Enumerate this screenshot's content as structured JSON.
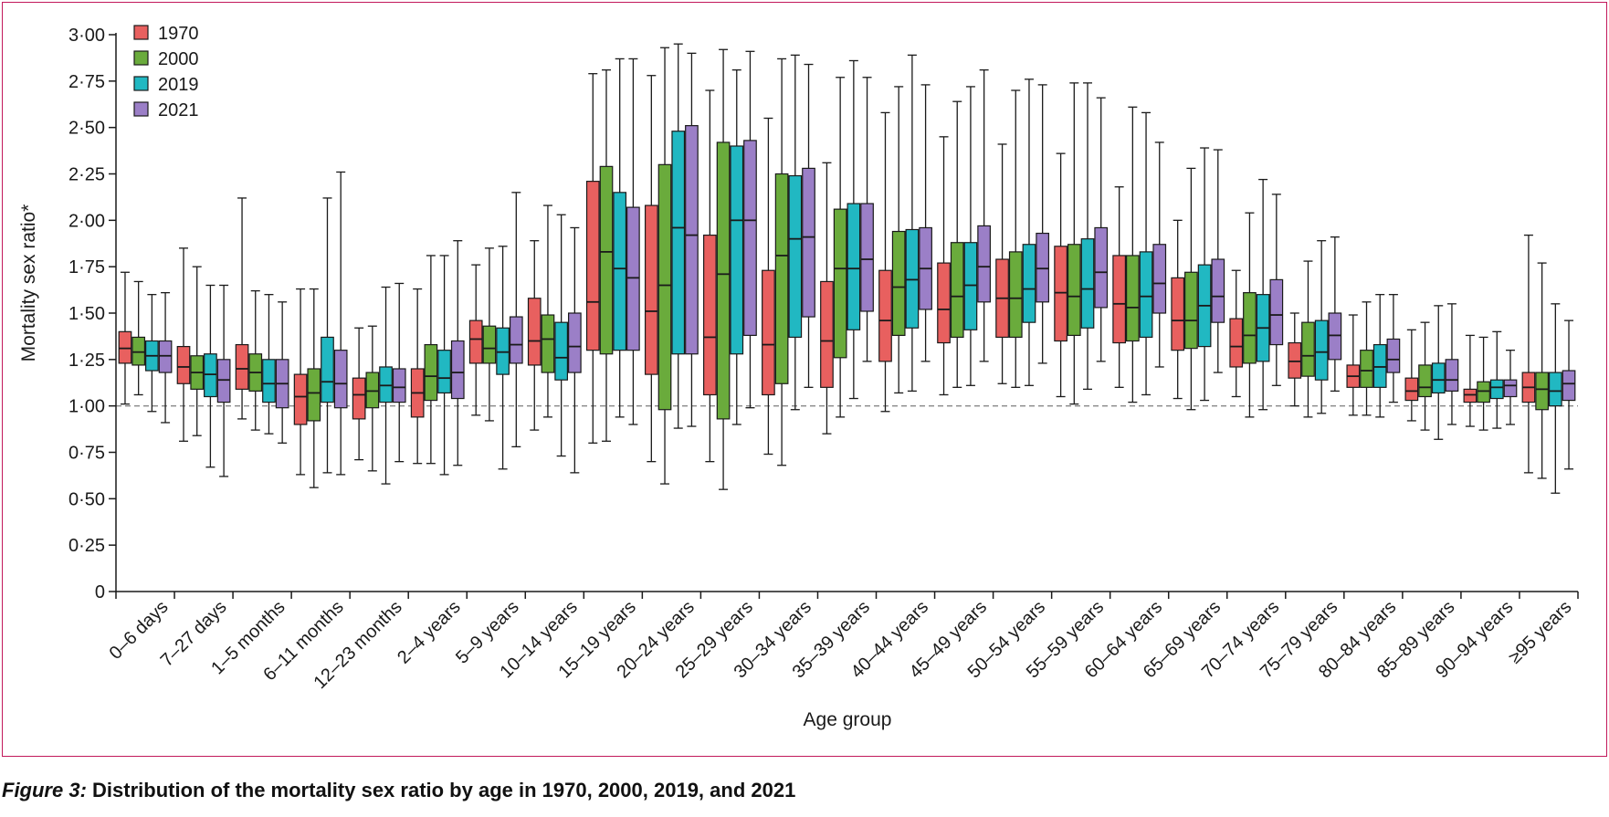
{
  "figure": {
    "label": "Figure 3:",
    "title": "Distribution of the mortality sex ratio by age in 1970, 2000, 2019, and 2021",
    "colors": {
      "1970": "#e8605f",
      "2000": "#6aab3c",
      "2019": "#21b8c2",
      "2021": "#9b7fc7",
      "reference_line": "#888888",
      "frame": "#c2185b"
    }
  },
  "chart_data": {
    "type": "box",
    "xlabel": "Age group",
    "ylabel": "Mortality sex ratio*",
    "ylim": [
      0,
      3.0
    ],
    "yticks": [
      "0",
      "0·25",
      "0·50",
      "0·75",
      "1·00",
      "1·25",
      "1·50",
      "1·75",
      "2·00",
      "2·25",
      "2·50",
      "2·75",
      "3·00"
    ],
    "ytick_values": [
      0,
      0.25,
      0.5,
      0.75,
      1.0,
      1.25,
      1.5,
      1.75,
      2.0,
      2.25,
      2.5,
      2.75,
      3.0
    ],
    "reference_line": 1.0,
    "legend_position": "top-left",
    "series_names": [
      "1970",
      "2000",
      "2019",
      "2021"
    ],
    "categories": [
      "0–6 days",
      "7–27 days",
      "1–5 months",
      "6–11 months",
      "12–23 months",
      "2–4 years",
      "5–9 years",
      "10–14 years",
      "15–19 years",
      "20–24 years",
      "25–29 years",
      "30–34 years",
      "35–39 years",
      "40–44 years",
      "45–49 years",
      "50–54 years",
      "55–59 years",
      "60–64 years",
      "65–69 years",
      "70–74 years",
      "75–79 years",
      "80–84 years",
      "85–89 years",
      "90–94 years",
      "≥95 years"
    ],
    "boxes": [
      [
        [
          1.01,
          1.23,
          1.31,
          1.4,
          1.72
        ],
        [
          1.06,
          1.22,
          1.29,
          1.37,
          1.67
        ],
        [
          0.97,
          1.19,
          1.27,
          1.35,
          1.6
        ],
        [
          0.91,
          1.18,
          1.27,
          1.35,
          1.61
        ]
      ],
      [
        [
          0.81,
          1.12,
          1.21,
          1.32,
          1.85
        ],
        [
          0.84,
          1.09,
          1.18,
          1.27,
          1.75
        ],
        [
          0.67,
          1.05,
          1.17,
          1.28,
          1.65
        ],
        [
          0.62,
          1.02,
          1.14,
          1.25,
          1.65
        ]
      ],
      [
        [
          0.93,
          1.09,
          1.2,
          1.33,
          2.12
        ],
        [
          0.87,
          1.08,
          1.18,
          1.28,
          1.62
        ],
        [
          0.85,
          1.02,
          1.12,
          1.25,
          1.6
        ],
        [
          0.8,
          0.99,
          1.12,
          1.25,
          1.56
        ]
      ],
      [
        [
          0.63,
          0.9,
          1.05,
          1.17,
          1.63
        ],
        [
          0.56,
          0.92,
          1.07,
          1.2,
          1.63
        ],
        [
          0.64,
          1.02,
          1.13,
          1.37,
          2.12
        ],
        [
          0.63,
          0.99,
          1.12,
          1.3,
          2.26
        ]
      ],
      [
        [
          0.71,
          0.93,
          1.06,
          1.15,
          1.42
        ],
        [
          0.65,
          0.99,
          1.08,
          1.18,
          1.43
        ],
        [
          0.58,
          1.02,
          1.11,
          1.21,
          1.64
        ],
        [
          0.7,
          1.02,
          1.1,
          1.2,
          1.66
        ]
      ],
      [
        [
          0.69,
          0.94,
          1.07,
          1.2,
          1.63
        ],
        [
          0.69,
          1.03,
          1.16,
          1.33,
          1.81
        ],
        [
          0.63,
          1.07,
          1.15,
          1.3,
          1.81
        ],
        [
          0.68,
          1.04,
          1.18,
          1.35,
          1.89
        ]
      ],
      [
        [
          0.95,
          1.23,
          1.36,
          1.46,
          1.76
        ],
        [
          0.92,
          1.23,
          1.31,
          1.43,
          1.85
        ],
        [
          0.66,
          1.17,
          1.29,
          1.42,
          1.86
        ],
        [
          0.78,
          1.23,
          1.33,
          1.48,
          2.15
        ]
      ],
      [
        [
          0.87,
          1.22,
          1.35,
          1.58,
          1.89
        ],
        [
          0.94,
          1.18,
          1.36,
          1.49,
          2.08
        ],
        [
          0.73,
          1.14,
          1.26,
          1.45,
          2.03
        ],
        [
          0.64,
          1.18,
          1.32,
          1.5,
          1.96
        ]
      ],
      [
        [
          0.8,
          1.3,
          1.56,
          2.21,
          2.79
        ],
        [
          0.81,
          1.28,
          1.83,
          2.29,
          2.81
        ],
        [
          0.94,
          1.3,
          1.74,
          2.15,
          2.87
        ],
        [
          0.9,
          1.3,
          1.69,
          2.07,
          2.87
        ]
      ],
      [
        [
          0.7,
          1.17,
          1.51,
          2.08,
          2.78
        ],
        [
          0.58,
          0.98,
          1.65,
          2.3,
          2.93
        ],
        [
          0.88,
          1.28,
          1.96,
          2.48,
          2.95
        ],
        [
          0.89,
          1.28,
          1.92,
          2.51,
          2.9
        ]
      ],
      [
        [
          0.7,
          1.06,
          1.37,
          1.92,
          2.7
        ],
        [
          0.55,
          0.93,
          1.71,
          2.42,
          2.92
        ],
        [
          0.9,
          1.28,
          2.0,
          2.4,
          2.81
        ],
        [
          0.99,
          1.38,
          2.0,
          2.43,
          2.91
        ]
      ],
      [
        [
          0.74,
          1.06,
          1.33,
          1.73,
          2.55
        ],
        [
          0.68,
          1.12,
          1.81,
          2.25,
          2.87
        ],
        [
          0.98,
          1.37,
          1.9,
          2.24,
          2.89
        ],
        [
          1.1,
          1.48,
          1.91,
          2.28,
          2.84
        ]
      ],
      [
        [
          0.85,
          1.1,
          1.35,
          1.67,
          2.31
        ],
        [
          0.94,
          1.26,
          1.74,
          2.06,
          2.77
        ],
        [
          1.04,
          1.41,
          1.74,
          2.09,
          2.86
        ],
        [
          1.24,
          1.51,
          1.79,
          2.09,
          2.77
        ]
      ],
      [
        [
          0.97,
          1.24,
          1.46,
          1.73,
          2.58
        ],
        [
          1.07,
          1.38,
          1.64,
          1.94,
          2.72
        ],
        [
          1.08,
          1.42,
          1.68,
          1.95,
          2.89
        ],
        [
          1.24,
          1.52,
          1.74,
          1.96,
          2.73
        ]
      ],
      [
        [
          1.06,
          1.34,
          1.52,
          1.77,
          2.45
        ],
        [
          1.1,
          1.37,
          1.59,
          1.88,
          2.64
        ],
        [
          1.11,
          1.41,
          1.65,
          1.88,
          2.72
        ],
        [
          1.24,
          1.56,
          1.75,
          1.97,
          2.81
        ]
      ],
      [
        [
          1.12,
          1.37,
          1.58,
          1.79,
          2.41
        ],
        [
          1.1,
          1.37,
          1.58,
          1.83,
          2.7
        ],
        [
          1.11,
          1.45,
          1.63,
          1.87,
          2.76
        ],
        [
          1.23,
          1.56,
          1.74,
          1.93,
          2.73
        ]
      ],
      [
        [
          1.05,
          1.35,
          1.61,
          1.86,
          2.36
        ],
        [
          1.01,
          1.38,
          1.59,
          1.87,
          2.74
        ],
        [
          1.09,
          1.42,
          1.63,
          1.9,
          2.74
        ],
        [
          1.24,
          1.53,
          1.72,
          1.96,
          2.66
        ]
      ],
      [
        [
          1.1,
          1.34,
          1.55,
          1.81,
          2.18
        ],
        [
          1.02,
          1.35,
          1.53,
          1.81,
          2.61
        ],
        [
          1.06,
          1.37,
          1.59,
          1.83,
          2.58
        ],
        [
          1.21,
          1.5,
          1.66,
          1.87,
          2.42
        ]
      ],
      [
        [
          1.04,
          1.3,
          1.46,
          1.69,
          2.0
        ],
        [
          0.98,
          1.31,
          1.46,
          1.72,
          2.28
        ],
        [
          1.03,
          1.32,
          1.54,
          1.76,
          2.39
        ],
        [
          1.18,
          1.45,
          1.59,
          1.79,
          2.38
        ]
      ],
      [
        [
          1.05,
          1.21,
          1.32,
          1.47,
          1.73
        ],
        [
          0.94,
          1.23,
          1.38,
          1.61,
          2.04
        ],
        [
          0.98,
          1.24,
          1.42,
          1.6,
          2.22
        ],
        [
          1.11,
          1.33,
          1.49,
          1.68,
          2.14
        ]
      ],
      [
        [
          1.0,
          1.15,
          1.24,
          1.34,
          1.5
        ],
        [
          0.94,
          1.16,
          1.27,
          1.45,
          1.78
        ],
        [
          0.96,
          1.14,
          1.29,
          1.46,
          1.89
        ],
        [
          1.08,
          1.25,
          1.38,
          1.5,
          1.91
        ]
      ],
      [
        [
          0.95,
          1.1,
          1.16,
          1.22,
          1.49
        ],
        [
          0.95,
          1.1,
          1.19,
          1.3,
          1.56
        ],
        [
          0.94,
          1.1,
          1.21,
          1.33,
          1.6
        ],
        [
          1.02,
          1.18,
          1.25,
          1.36,
          1.6
        ]
      ],
      [
        [
          0.92,
          1.03,
          1.08,
          1.15,
          1.41
        ],
        [
          0.87,
          1.05,
          1.1,
          1.22,
          1.45
        ],
        [
          0.82,
          1.07,
          1.14,
          1.23,
          1.54
        ],
        [
          0.9,
          1.08,
          1.14,
          1.25,
          1.55
        ]
      ],
      [
        [
          0.89,
          1.02,
          1.06,
          1.09,
          1.38
        ],
        [
          0.87,
          1.02,
          1.08,
          1.13,
          1.37
        ],
        [
          0.88,
          1.04,
          1.1,
          1.14,
          1.4
        ],
        [
          0.9,
          1.05,
          1.11,
          1.14,
          1.3
        ]
      ],
      [
        [
          0.64,
          1.02,
          1.1,
          1.18,
          1.92
        ],
        [
          0.61,
          0.98,
          1.09,
          1.18,
          1.77
        ],
        [
          0.53,
          1.0,
          1.08,
          1.18,
          1.55
        ],
        [
          0.66,
          1.03,
          1.12,
          1.19,
          1.46
        ]
      ]
    ]
  }
}
